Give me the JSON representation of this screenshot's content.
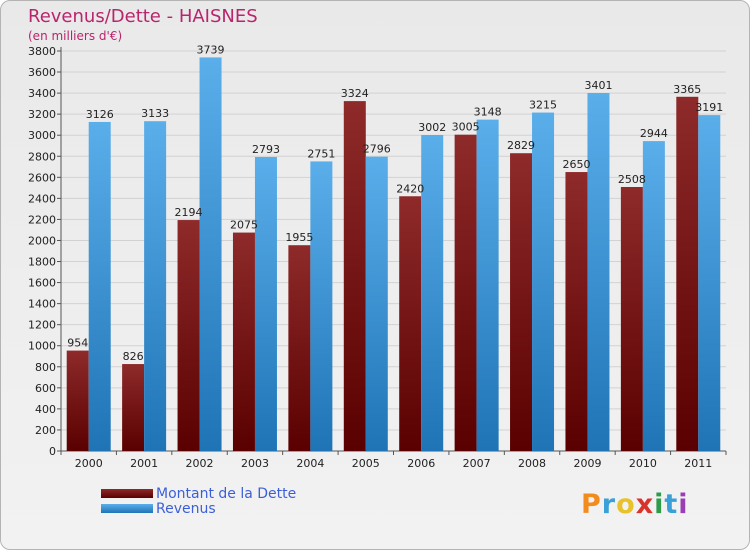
{
  "title": "Revenus/Dette - HAISNES",
  "subtitle": "(en milliers d'€)",
  "logo_text": "Proxiti",
  "colors": {
    "debt_dark": "#5a0000",
    "debt_light": "#8e2a2a",
    "revenue_dark": "#1f74b6",
    "revenue_light": "#5aaeea",
    "title": "#b9246d",
    "legend_text": "#3c5fd8"
  },
  "legend": [
    {
      "label": "Montant de la Dette",
      "color": "#6a0c0c"
    },
    {
      "label": "Revenus",
      "color": "#4ba3e6"
    }
  ],
  "chart_data": {
    "type": "bar",
    "categories": [
      "2000",
      "2001",
      "2002",
      "2003",
      "2004",
      "2005",
      "2006",
      "2007",
      "2008",
      "2009",
      "2010",
      "2011"
    ],
    "series": [
      {
        "name": "Montant de la Dette",
        "values": [
          954,
          826,
          2194,
          2075,
          1955,
          3324,
          2420,
          3005,
          2829,
          2650,
          2508,
          3365
        ]
      },
      {
        "name": "Revenus",
        "values": [
          3126,
          3133,
          3739,
          2793,
          2751,
          2796,
          3002,
          3148,
          3215,
          3401,
          2944,
          3191
        ]
      }
    ],
    "ylim": [
      0,
      3800
    ],
    "yticks": [
      0,
      200,
      400,
      600,
      800,
      1000,
      1200,
      1400,
      1600,
      1800,
      2000,
      2200,
      2400,
      2600,
      2800,
      3000,
      3200,
      3400,
      3600,
      3800
    ],
    "grid": true,
    "legend_position": "bottom-left"
  }
}
